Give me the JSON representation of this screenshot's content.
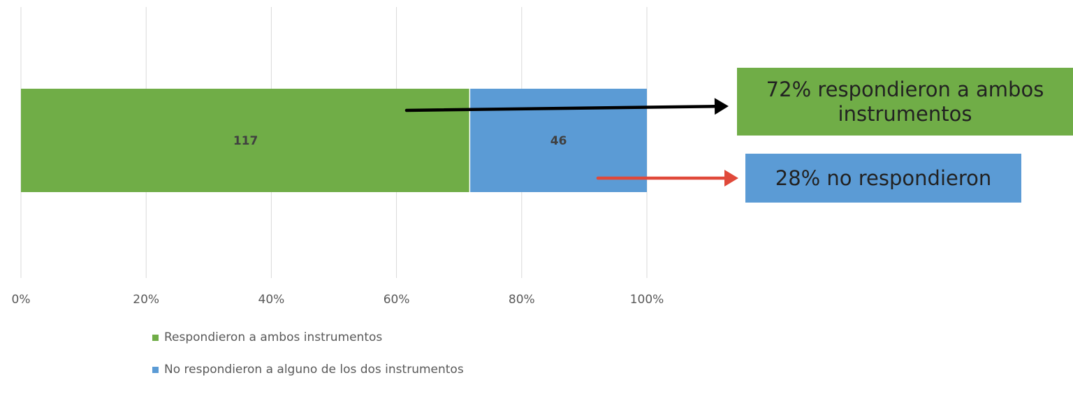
{
  "chart_data": {
    "type": "bar",
    "orientation": "horizontal",
    "stacked": "percent",
    "categories": [
      ""
    ],
    "series": [
      {
        "name": "Respondieron a ambos instrumentos",
        "values": [
          117
        ],
        "color": "#70ad47"
      },
      {
        "name": "No respondieron a alguno de los dos instrumentos",
        "values": [
          46
        ],
        "color": "#5b9bd5"
      }
    ],
    "x_ticks": [
      "0%",
      "20%",
      "40%",
      "60%",
      "80%",
      "100%"
    ],
    "xlim": [
      0,
      100
    ],
    "grid": true,
    "legend_position": "bottom",
    "title": "",
    "xlabel": "",
    "ylabel": ""
  },
  "annotations": {
    "green_callout": {
      "text": "72% respondieron a ambos instrumentos",
      "color": "#70ad47",
      "arrow_color": "#000000"
    },
    "blue_callout": {
      "text": "28%  no respondieron",
      "color": "#5b9bd5",
      "arrow_color": "#e0493a"
    }
  }
}
